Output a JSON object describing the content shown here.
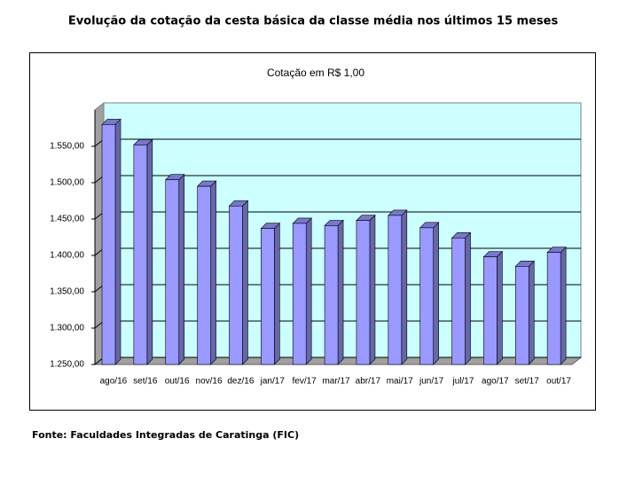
{
  "chart_data": {
    "type": "bar3d",
    "title": "Evolução da cotação da cesta básica da classe média nos últimos 15 meses",
    "subtitle": "Cotação em R$ 1,00",
    "source": "Fonte: Faculdades Integradas de Caratinga (FIC)",
    "categories": [
      "ago/16",
      "set/16",
      "out/16",
      "nov/16",
      "dez/16",
      "jan/17",
      "fev/17",
      "mar/17",
      "abr/17",
      "mai/17",
      "jun/17",
      "jul/17",
      "ago/17",
      "set/17",
      "out/17"
    ],
    "values": [
      1580,
      1552,
      1504,
      1495,
      1468,
      1437,
      1444,
      1441,
      1448,
      1455,
      1438,
      1424,
      1398,
      1385,
      1404
    ],
    "color": "#9999ff",
    "ylim": [
      1250,
      1600
    ],
    "yticks": [
      {
        "value": 1250,
        "label": "1.250,00"
      },
      {
        "value": 1300,
        "label": "1.300,00"
      },
      {
        "value": 1350,
        "label": "1.350,00"
      },
      {
        "value": 1400,
        "label": "1.400,00"
      },
      {
        "value": 1450,
        "label": "1.450,00"
      },
      {
        "value": 1500,
        "label": "1.500,00"
      },
      {
        "value": 1550,
        "label": "1.550,00"
      }
    ],
    "grid": true
  }
}
